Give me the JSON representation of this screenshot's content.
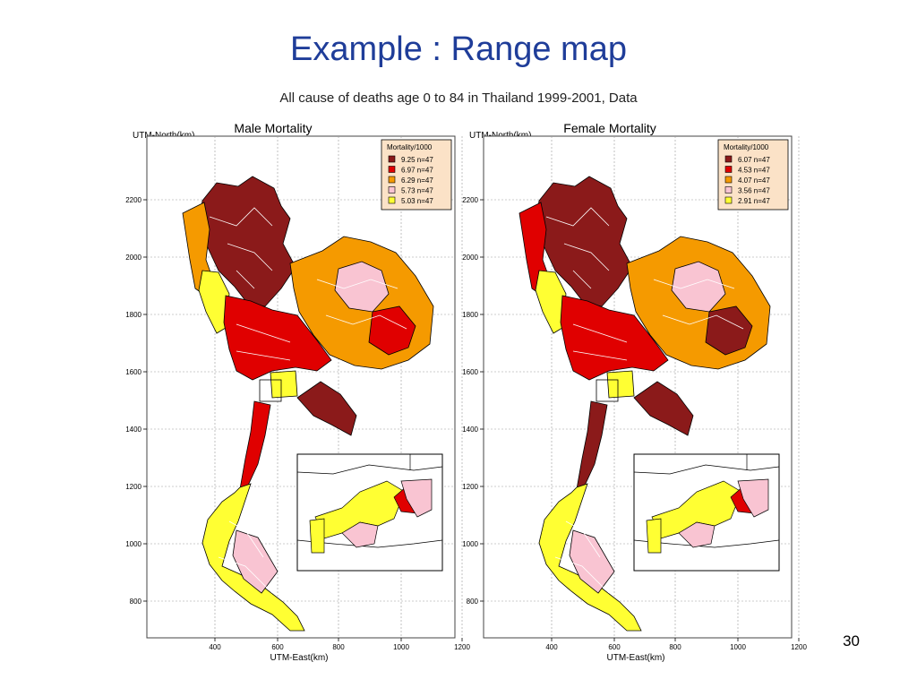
{
  "slide": {
    "title": "Example : Range map",
    "subtitle": "All cause of deaths age 0 to 84 in Thailand 1999-2001, Data",
    "page_number": "30"
  },
  "maps": [
    {
      "id": "male",
      "title": "Male Mortality",
      "y_axis_label": "UTM-North(km)",
      "x_axis_label": "UTM-East(km)",
      "y_ticks": [
        "2200",
        "2000",
        "1800",
        "1600",
        "1400",
        "1200",
        "1000",
        "800"
      ],
      "x_ticks": [
        "400",
        "600",
        "800",
        "1000",
        "1200"
      ],
      "legend": {
        "title": "Mortality/1000",
        "items": [
          {
            "label": "9.25 n=47",
            "color": "#8b1a1a"
          },
          {
            "label": "6.97 n=47",
            "color": "#e00000"
          },
          {
            "label": "6.29 n=47",
            "color": "#f59a00"
          },
          {
            "label": "5.73 n=47",
            "color": "#f9c4d2"
          },
          {
            "label": "5.03 n=47",
            "color": "#ffff33"
          }
        ]
      },
      "region_classes": {
        "north": 0,
        "northwest": 2,
        "west_strip": 4,
        "central": 1,
        "bangkok": 4,
        "northeast_main": 2,
        "northeast_pink": 3,
        "northeast_red": 1,
        "east": 0,
        "isthmus": 1,
        "south": 4,
        "south_pink": 3
      }
    },
    {
      "id": "female",
      "title": "Female Mortality",
      "y_axis_label": "UTM-North(km)",
      "x_axis_label": "UTM-East(km)",
      "y_ticks": [
        "2200",
        "2000",
        "1800",
        "1600",
        "1400",
        "1200",
        "1000",
        "800"
      ],
      "x_ticks": [
        "400",
        "600",
        "800",
        "1000",
        "1200"
      ],
      "legend": {
        "title": "Mortality/1000",
        "items": [
          {
            "label": "6.07 n=47",
            "color": "#8b1a1a"
          },
          {
            "label": "4.53 n=47",
            "color": "#e00000"
          },
          {
            "label": "4.07 n=47",
            "color": "#f59a00"
          },
          {
            "label": "3.56 n=47",
            "color": "#f9c4d2"
          },
          {
            "label": "2.91 n=47",
            "color": "#ffff33"
          }
        ]
      },
      "region_classes": {
        "north": 0,
        "northwest": 1,
        "west_strip": 4,
        "central": 1,
        "bangkok": 4,
        "northeast_main": 2,
        "northeast_pink": 3,
        "northeast_red": 0,
        "east": 0,
        "isthmus": 0,
        "south": 4,
        "south_pink": 3
      }
    }
  ]
}
